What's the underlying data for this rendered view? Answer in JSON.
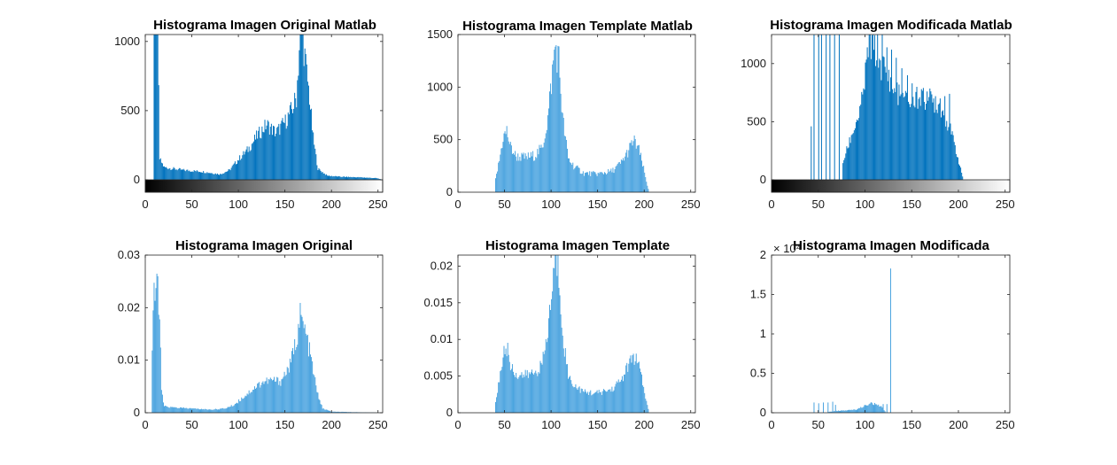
{
  "figure": {
    "background": "#ffffff",
    "bar_color_dark": "#0072bd",
    "bar_color_light": "#4aa3df"
  },
  "chart_data": [
    {
      "id": "p1",
      "type": "bar",
      "title": "Histograma Imagen Original Matlab",
      "xlim": [
        0,
        255
      ],
      "ylim": [
        0,
        1050
      ],
      "xticks": [
        0,
        50,
        100,
        150,
        200,
        250
      ],
      "yticks": [
        0,
        500,
        1000
      ],
      "colorbar": true,
      "bar_color": "#0072bd",
      "profile": [
        [
          0,
          0
        ],
        [
          8,
          0
        ],
        [
          9,
          1200
        ],
        [
          12,
          1200
        ],
        [
          13,
          1100
        ],
        [
          15,
          150
        ],
        [
          20,
          90
        ],
        [
          30,
          80
        ],
        [
          40,
          70
        ],
        [
          60,
          60
        ],
        [
          80,
          40
        ],
        [
          90,
          70
        ],
        [
          100,
          150
        ],
        [
          110,
          220
        ],
        [
          120,
          320
        ],
        [
          130,
          400
        ],
        [
          140,
          340
        ],
        [
          150,
          420
        ],
        [
          158,
          520
        ],
        [
          162,
          600
        ],
        [
          165,
          950
        ],
        [
          168,
          1100
        ],
        [
          172,
          820
        ],
        [
          176,
          600
        ],
        [
          180,
          300
        ],
        [
          185,
          80
        ],
        [
          195,
          30
        ],
        [
          210,
          22
        ],
        [
          230,
          18
        ],
        [
          248,
          12
        ],
        [
          255,
          0
        ]
      ],
      "series": [
        {
          "values_estimated": "smooth envelope given by profile (x, count) pairs"
        }
      ]
    },
    {
      "id": "p2",
      "type": "bar",
      "title": "Histograma Imagen Template Matlab",
      "xlim": [
        0,
        255
      ],
      "ylim": [
        0,
        1500
      ],
      "xticks": [
        0,
        50,
        100,
        150,
        200,
        250
      ],
      "yticks": [
        0,
        500,
        1000,
        1500
      ],
      "colorbar": false,
      "bar_color": "#4aa3df",
      "profile": [
        [
          0,
          0
        ],
        [
          39,
          0
        ],
        [
          40,
          120
        ],
        [
          44,
          300
        ],
        [
          48,
          520
        ],
        [
          52,
          580
        ],
        [
          56,
          430
        ],
        [
          62,
          340
        ],
        [
          72,
          330
        ],
        [
          82,
          350
        ],
        [
          90,
          420
        ],
        [
          96,
          700
        ],
        [
          100,
          1050
        ],
        [
          104,
          1400
        ],
        [
          108,
          1250
        ],
        [
          112,
          700
        ],
        [
          118,
          320
        ],
        [
          125,
          240
        ],
        [
          135,
          180
        ],
        [
          150,
          175
        ],
        [
          165,
          200
        ],
        [
          175,
          280
        ],
        [
          183,
          400
        ],
        [
          188,
          490
        ],
        [
          193,
          430
        ],
        [
          198,
          260
        ],
        [
          202,
          100
        ],
        [
          205,
          0
        ],
        [
          255,
          0
        ]
      ]
    },
    {
      "id": "p3",
      "type": "bar",
      "title": "Histograma Imagen Modificada Matlab",
      "xlim": [
        0,
        255
      ],
      "ylim": [
        0,
        1250
      ],
      "xticks": [
        0,
        50,
        100,
        150,
        200,
        250
      ],
      "yticks": [
        0,
        500,
        1000
      ],
      "colorbar": true,
      "bar_color": "#0072bd",
      "profile": [
        [
          0,
          0
        ],
        [
          75,
          0
        ],
        [
          76,
          150
        ],
        [
          85,
          380
        ],
        [
          95,
          600
        ],
        [
          100,
          900
        ],
        [
          104,
          1200
        ],
        [
          112,
          1100
        ],
        [
          118,
          980
        ],
        [
          124,
          930
        ],
        [
          130,
          780
        ],
        [
          140,
          690
        ],
        [
          150,
          660
        ],
        [
          160,
          690
        ],
        [
          170,
          690
        ],
        [
          178,
          650
        ],
        [
          185,
          560
        ],
        [
          192,
          400
        ],
        [
          198,
          220
        ],
        [
          203,
          60
        ],
        [
          205,
          0
        ],
        [
          255,
          0
        ]
      ],
      "spikes": [
        [
          42,
          460
        ],
        [
          45,
          1400
        ],
        [
          50,
          1400
        ],
        [
          53,
          1250
        ],
        [
          58,
          1250
        ],
        [
          62,
          1400
        ],
        [
          67,
          1400
        ],
        [
          72,
          1400
        ],
        [
          108,
          1400
        ],
        [
          113,
          1400
        ],
        [
          118,
          1260
        ],
        [
          123,
          1140
        ],
        [
          128,
          1120
        ],
        [
          133,
          1050
        ],
        [
          139,
          960
        ],
        [
          145,
          900
        ],
        [
          150,
          830
        ],
        [
          155,
          800
        ],
        [
          160,
          780
        ],
        [
          166,
          760
        ],
        [
          170,
          740
        ],
        [
          175,
          720
        ],
        [
          180,
          700
        ],
        [
          185,
          720
        ],
        [
          190,
          740
        ]
      ]
    },
    {
      "id": "p4",
      "type": "bar",
      "title": "Histograma Imagen Original",
      "xlim": [
        0,
        255
      ],
      "ylim": [
        0,
        0.03
      ],
      "xticks": [
        0,
        50,
        100,
        150,
        200,
        250
      ],
      "yticks": [
        0,
        0.01,
        0.02,
        0.03
      ],
      "ytick_labels": [
        "0",
        "0.01",
        "0.02",
        "0.03"
      ],
      "colorbar": false,
      "bar_color": "#4aa3df",
      "profile": [
        [
          0,
          0
        ],
        [
          6,
          0
        ],
        [
          7,
          0.012
        ],
        [
          9,
          0.022
        ],
        [
          11,
          0.023
        ],
        [
          13,
          0.0255
        ],
        [
          15,
          0.018
        ],
        [
          17,
          0.004
        ],
        [
          20,
          0.0012
        ],
        [
          30,
          0.001
        ],
        [
          50,
          0.0008
        ],
        [
          70,
          0.0006
        ],
        [
          85,
          0.0008
        ],
        [
          95,
          0.0015
        ],
        [
          105,
          0.003
        ],
        [
          115,
          0.0045
        ],
        [
          125,
          0.0058
        ],
        [
          135,
          0.0062
        ],
        [
          145,
          0.006
        ],
        [
          155,
          0.009
        ],
        [
          162,
          0.014
        ],
        [
          166,
          0.0185
        ],
        [
          172,
          0.015
        ],
        [
          178,
          0.01
        ],
        [
          184,
          0.004
        ],
        [
          190,
          0.0008
        ],
        [
          200,
          0.0002
        ],
        [
          255,
          0
        ]
      ]
    },
    {
      "id": "p5",
      "type": "bar",
      "title": "Histograma Imagen Template",
      "xlim": [
        0,
        255
      ],
      "ylim": [
        0,
        0.0215
      ],
      "xticks": [
        0,
        50,
        100,
        150,
        200,
        250
      ],
      "yticks": [
        0,
        0.005,
        0.01,
        0.015,
        0.02
      ],
      "ytick_labels": [
        "0",
        "0.005",
        "0.01",
        "0.015",
        "0.02"
      ],
      "colorbar": false,
      "bar_color": "#4aa3df",
      "profile": [
        [
          0,
          0
        ],
        [
          39,
          0
        ],
        [
          40,
          0.0015
        ],
        [
          44,
          0.0045
        ],
        [
          48,
          0.0078
        ],
        [
          52,
          0.009
        ],
        [
          56,
          0.0065
        ],
        [
          62,
          0.0052
        ],
        [
          72,
          0.0051
        ],
        [
          82,
          0.0055
        ],
        [
          90,
          0.0065
        ],
        [
          96,
          0.011
        ],
        [
          100,
          0.016
        ],
        [
          104,
          0.0215
        ],
        [
          108,
          0.019
        ],
        [
          112,
          0.011
        ],
        [
          118,
          0.005
        ],
        [
          125,
          0.0037
        ],
        [
          135,
          0.0028
        ],
        [
          150,
          0.0027
        ],
        [
          165,
          0.0032
        ],
        [
          175,
          0.0045
        ],
        [
          183,
          0.0065
        ],
        [
          188,
          0.0077
        ],
        [
          193,
          0.0068
        ],
        [
          198,
          0.004
        ],
        [
          202,
          0.0015
        ],
        [
          205,
          0
        ],
        [
          255,
          0
        ]
      ]
    },
    {
      "id": "p6",
      "type": "bar",
      "title": "Histograma Imagen Modificada",
      "xlim": [
        0,
        255
      ],
      "ylim": [
        0,
        20000
      ],
      "xticks": [
        0,
        50,
        100,
        150,
        200,
        250
      ],
      "yticks": [
        0,
        5000,
        10000,
        15000,
        20000
      ],
      "ytick_labels": [
        "0",
        "0.5",
        "1",
        "1.5",
        "2"
      ],
      "exponent_label": "× 10⁴",
      "colorbar": false,
      "bar_color": "#4aa3df",
      "profile": [
        [
          0,
          0
        ],
        [
          59,
          0
        ],
        [
          60,
          100
        ],
        [
          70,
          250
        ],
        [
          80,
          300
        ],
        [
          90,
          400
        ],
        [
          100,
          900
        ],
        [
          105,
          1200
        ],
        [
          110,
          1100
        ],
        [
          118,
          700
        ],
        [
          122,
          0
        ],
        [
          255,
          0
        ]
      ],
      "spikes": [
        [
          45,
          1300
        ],
        [
          50,
          1200
        ],
        [
          55,
          1300
        ],
        [
          60,
          1300
        ],
        [
          65,
          1400
        ],
        [
          68,
          1000
        ],
        [
          119,
          1100
        ],
        [
          123,
          1100
        ],
        [
          127,
          18300
        ]
      ]
    }
  ]
}
